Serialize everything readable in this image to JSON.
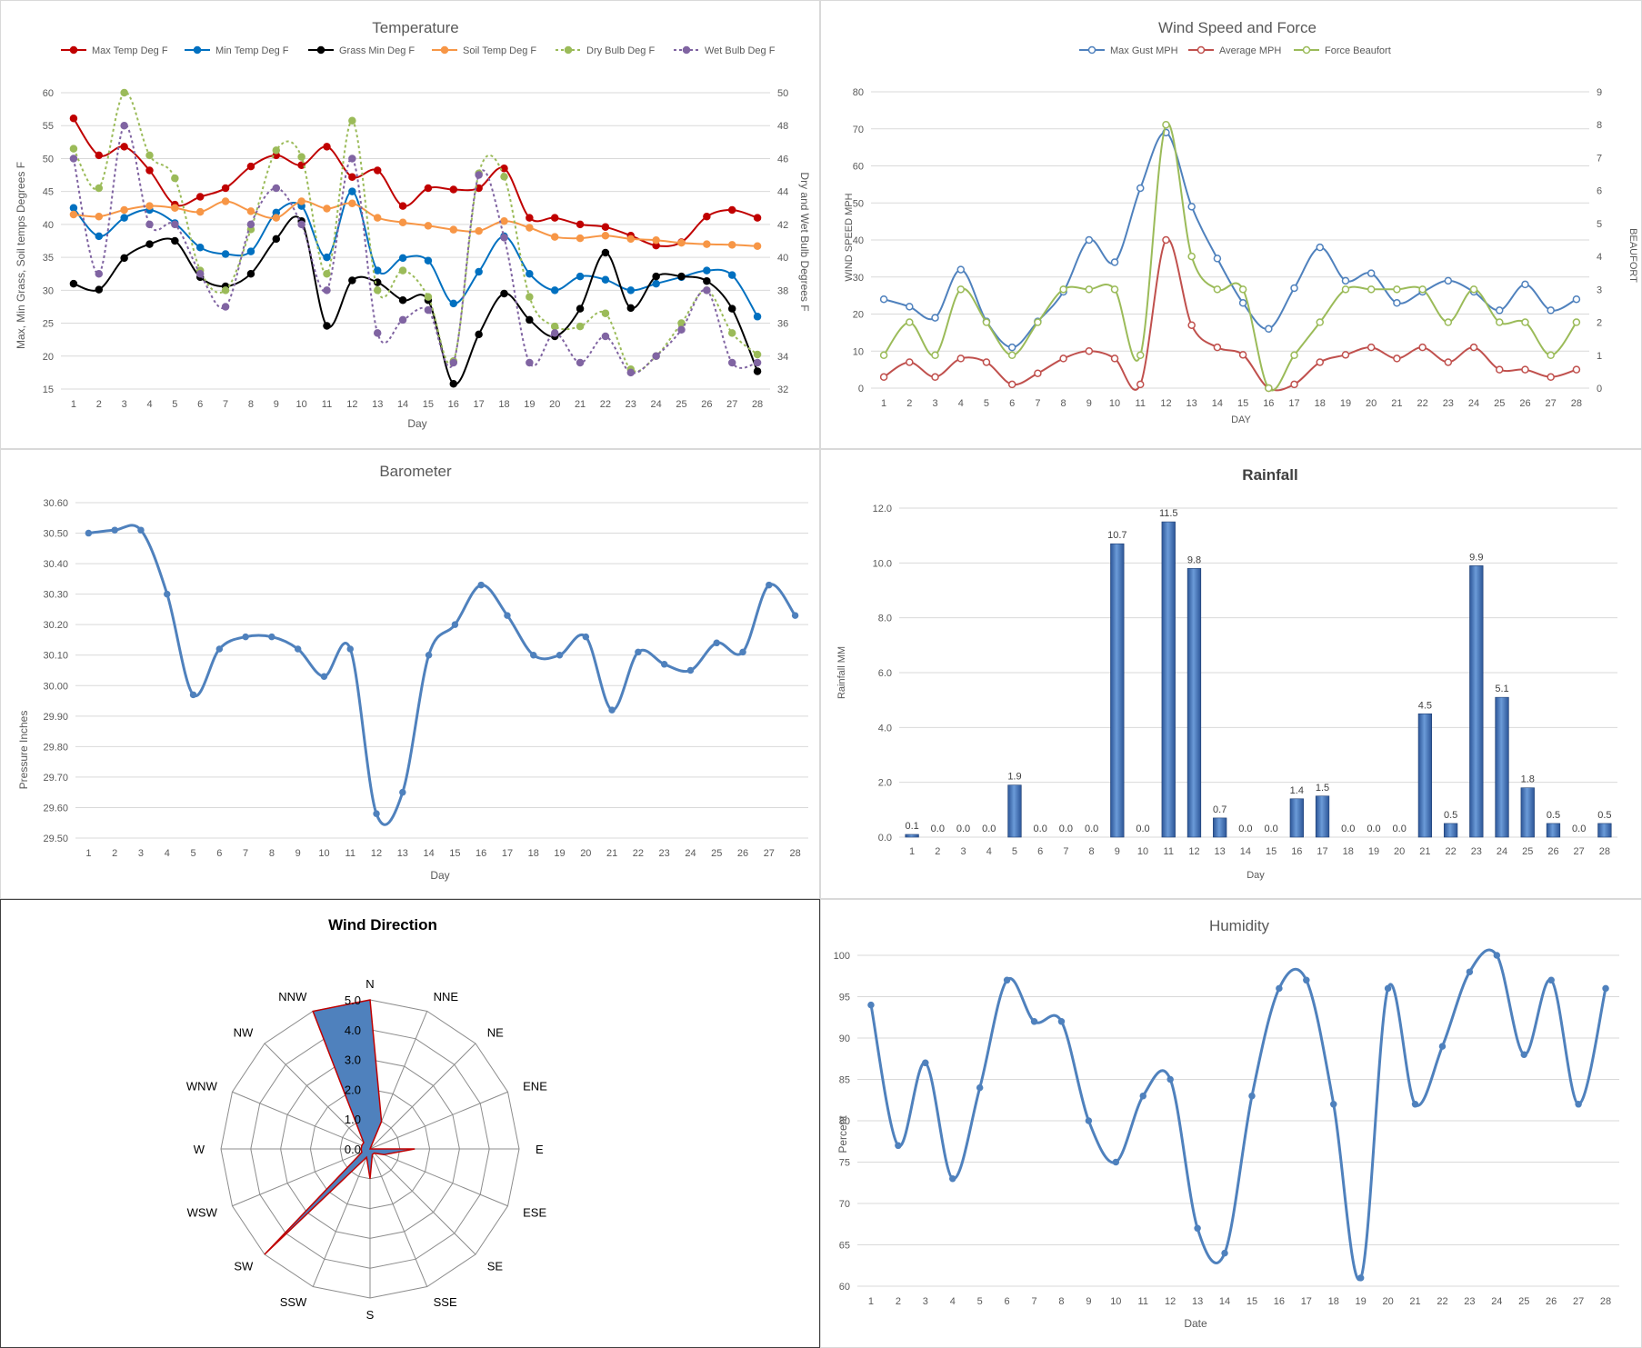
{
  "chart_data": [
    {
      "id": "temperature",
      "type": "line",
      "title": "Temperature",
      "xlabel": "Day",
      "ylabel": "Max, Min Grass, Soil temps Degrees F",
      "y2label": "Dry and Wet Bulb Degrees F",
      "ylim": [
        15,
        60
      ],
      "y2lim": [
        32,
        50
      ],
      "yticks": [
        15,
        20,
        25,
        30,
        35,
        40,
        45,
        50,
        55,
        60
      ],
      "y2ticks": [
        32,
        34,
        36,
        38,
        40,
        42,
        44,
        46,
        48,
        50
      ],
      "x": [
        1,
        2,
        3,
        4,
        5,
        6,
        7,
        8,
        9,
        10,
        11,
        12,
        13,
        14,
        15,
        16,
        17,
        18,
        19,
        20,
        21,
        22,
        23,
        24,
        25,
        26,
        27,
        28
      ],
      "legend_position": "top",
      "series": [
        {
          "name": "Max Temp Deg F",
          "axis": "left",
          "color": "#c00000",
          "dash": false,
          "values": [
            56.1,
            50.5,
            51.8,
            48.2,
            43.0,
            44.2,
            45.5,
            48.8,
            50.5,
            49.0,
            51.8,
            47.2,
            48.2,
            42.8,
            45.5,
            45.3,
            45.5,
            48.5,
            41.0,
            41.0,
            40.0,
            39.6,
            38.3,
            36.8,
            37.3,
            41.2,
            42.2,
            41.0
          ]
        },
        {
          "name": "Min Temp Deg F",
          "axis": "left",
          "color": "#0070c0",
          "dash": false,
          "values": [
            42.5,
            38.2,
            41.0,
            42.2,
            40.2,
            36.5,
            35.5,
            35.9,
            41.8,
            42.8,
            35.0,
            45.0,
            33.0,
            34.9,
            34.5,
            28.0,
            32.8,
            38.2,
            32.5,
            30.0,
            32.1,
            31.6,
            30.0,
            31.0,
            32.0,
            33.0,
            32.3,
            26.0
          ]
        },
        {
          "name": "Grass Min Deg F",
          "axis": "left",
          "color": "#000000",
          "dash": false,
          "values": [
            31.0,
            30.1,
            34.9,
            37.0,
            37.5,
            32.0,
            30.6,
            32.5,
            37.8,
            40.5,
            24.6,
            31.5,
            31.2,
            28.5,
            28.5,
            15.8,
            23.3,
            29.5,
            25.5,
            23.0,
            27.2,
            35.7,
            27.3,
            32.1,
            32.1,
            31.4,
            27.2,
            17.7
          ]
        },
        {
          "name": "Soil Temp Deg F",
          "axis": "left",
          "color": "#f79646",
          "dash": false,
          "values": [
            41.5,
            41.2,
            42.2,
            42.8,
            42.5,
            41.9,
            43.5,
            42.0,
            41.0,
            43.5,
            42.4,
            43.2,
            41.0,
            40.3,
            39.8,
            39.2,
            39.0,
            40.5,
            39.5,
            38.1,
            37.9,
            38.3,
            37.8,
            37.6,
            37.2,
            37.0,
            36.9,
            36.7
          ]
        },
        {
          "name": "Dry Bulb Deg F",
          "axis": "right",
          "color": "#9bbb59",
          "dash": true,
          "values": [
            46.6,
            44.2,
            50.0,
            46.2,
            44.8,
            39.2,
            38.0,
            41.7,
            46.5,
            46.1,
            39.0,
            48.3,
            38.0,
            39.2,
            37.6,
            33.7,
            45.1,
            44.9,
            37.6,
            35.8,
            35.8,
            36.6,
            33.2,
            34.0,
            36.0,
            38.0,
            35.4,
            34.1
          ]
        },
        {
          "name": "Wet Bulb Deg F",
          "axis": "right",
          "color": "#8064a2",
          "dash": true,
          "values": [
            46.0,
            39.0,
            48.0,
            42.0,
            42.0,
            39.0,
            37.0,
            42.0,
            44.2,
            42.0,
            38.0,
            46.0,
            35.4,
            36.2,
            36.8,
            33.6,
            45.0,
            41.2,
            33.6,
            35.4,
            33.6,
            35.2,
            33.0,
            34.0,
            35.6,
            38.0,
            33.6,
            33.6
          ]
        }
      ]
    },
    {
      "id": "wind_speed",
      "type": "line",
      "title": "Wind Speed and Force",
      "xlabel": "DAY",
      "ylabel": "WIND SPEED MPH",
      "y2label": "BEAUFORT",
      "ylim": [
        0,
        80
      ],
      "y2lim": [
        0,
        9
      ],
      "yticks": [
        0,
        10,
        20,
        30,
        40,
        50,
        60,
        70,
        80
      ],
      "y2ticks": [
        0,
        1,
        2,
        3,
        4,
        5,
        6,
        7,
        8,
        9
      ],
      "x": [
        1,
        2,
        3,
        4,
        5,
        6,
        7,
        8,
        9,
        10,
        11,
        12,
        13,
        14,
        15,
        16,
        17,
        18,
        19,
        20,
        21,
        22,
        23,
        24,
        25,
        26,
        27,
        28
      ],
      "legend_position": "top",
      "series": [
        {
          "name": "Max Gust MPH",
          "axis": "left",
          "color": "#4f81bd",
          "values": [
            24,
            22,
            19,
            32,
            18,
            11,
            18,
            26,
            40,
            34,
            54,
            69,
            49,
            35,
            23,
            16,
            27,
            38,
            29,
            31,
            23,
            26,
            29,
            26,
            21,
            28,
            21,
            24
          ]
        },
        {
          "name": "Average MPH",
          "axis": "left",
          "color": "#c0504d",
          "values": [
            3,
            7,
            3,
            8,
            7,
            1,
            4,
            8,
            10,
            8,
            1,
            40,
            17,
            11,
            9,
            0,
            1,
            7,
            9,
            11,
            8,
            11,
            7,
            11,
            5,
            5,
            3,
            5
          ]
        },
        {
          "name": "Force Beaufort",
          "axis": "right",
          "color": "#9bbb59",
          "values": [
            1,
            2,
            1,
            3,
            2,
            1,
            2,
            3,
            3,
            3,
            1,
            8,
            4,
            3,
            3,
            0,
            1,
            2,
            3,
            3,
            3,
            3,
            2,
            3,
            2,
            2,
            1,
            2
          ]
        }
      ]
    },
    {
      "id": "barometer",
      "type": "line",
      "title": "Barometer",
      "xlabel": "Day",
      "ylabel": "Pressure Inches",
      "ylim": [
        29.5,
        30.6
      ],
      "yticks": [
        "29.50",
        "29.60",
        "29.70",
        "29.80",
        "29.90",
        "30.00",
        "30.10",
        "30.20",
        "30.30",
        "30.40",
        "30.50",
        "30.60"
      ],
      "x": [
        1,
        2,
        3,
        4,
        5,
        6,
        7,
        8,
        9,
        10,
        11,
        12,
        13,
        14,
        15,
        16,
        17,
        18,
        19,
        20,
        21,
        22,
        23,
        24,
        25,
        26,
        27,
        28
      ],
      "series": [
        {
          "name": "",
          "color": "#4f81bd",
          "values": [
            30.5,
            30.51,
            30.51,
            30.3,
            29.97,
            30.12,
            30.16,
            30.16,
            30.12,
            30.03,
            30.12,
            29.58,
            29.65,
            30.1,
            30.2,
            30.33,
            30.23,
            30.1,
            30.1,
            30.16,
            29.92,
            30.11,
            30.07,
            30.05,
            30.14,
            30.11,
            30.33,
            30.23
          ]
        }
      ]
    },
    {
      "id": "rainfall",
      "type": "bar",
      "title": "Rainfall",
      "xlabel": "Day",
      "ylabel": "Rainfall MM",
      "ylim": [
        0,
        12
      ],
      "yticks": [
        "0.0",
        "2.0",
        "4.0",
        "6.0",
        "8.0",
        "10.0",
        "12.0"
      ],
      "categories": [
        "1",
        "2",
        "3",
        "4",
        "5",
        "6",
        "7",
        "8",
        "9",
        "10",
        "11",
        "12",
        "13",
        "14",
        "15",
        "16",
        "17",
        "18",
        "19",
        "20",
        "21",
        "22",
        "23",
        "24",
        "25",
        "26",
        "27",
        "28"
      ],
      "values": [
        0.1,
        0.0,
        0.0,
        0.0,
        1.9,
        0.0,
        0.0,
        0.0,
        10.7,
        0.0,
        11.5,
        9.8,
        0.7,
        0.0,
        0.0,
        1.4,
        1.5,
        0.0,
        0.0,
        0.0,
        4.5,
        0.5,
        9.9,
        5.1,
        1.8,
        0.5,
        0.0,
        0.5
      ],
      "data_labels": [
        "0.1",
        "0.0",
        "0.0",
        "0.0",
        "1.9",
        "0.0",
        "0.0",
        "0.0",
        "10.7",
        "0.0",
        "11.5",
        "9.8",
        "0.7",
        "0.0",
        "0.0",
        "1.4",
        "1.5",
        "0.0",
        "0.0",
        "0.0",
        "4.5",
        "0.5",
        "9.9",
        "5.1",
        "1.8",
        "0.5",
        "0.0",
        "0.5"
      ],
      "color": "#4f81bd"
    },
    {
      "id": "wind_direction",
      "type": "radar",
      "title": "Wind Direction",
      "categories": [
        "N",
        "NNE",
        "NE",
        "ENE",
        "E",
        "ESE",
        "SE",
        "SSE",
        "S",
        "SSW",
        "SW",
        "WSW",
        "W",
        "WNW",
        "NW",
        "NNW"
      ],
      "values": [
        5.0,
        1.0,
        0.0,
        0.0,
        1.5,
        0.5,
        0.2,
        0.2,
        1.0,
        0.3,
        5.0,
        0.3,
        0.3,
        0.3,
        0.3,
        5.0
      ],
      "rlim": [
        0,
        5
      ],
      "rticks": [
        "0.0",
        "1.0",
        "2.0",
        "3.0",
        "4.0",
        "5.0"
      ],
      "fill_color": "#4f81bd",
      "line_color": "#c00000"
    },
    {
      "id": "humidity",
      "type": "line",
      "title": "Humidity",
      "xlabel": "Date",
      "ylabel": "Percent",
      "ylim": [
        60,
        100
      ],
      "yticks": [
        60,
        65,
        70,
        75,
        80,
        85,
        90,
        95,
        100
      ],
      "x": [
        1,
        2,
        3,
        4,
        5,
        6,
        7,
        8,
        9,
        10,
        11,
        12,
        13,
        14,
        15,
        16,
        17,
        18,
        19,
        20,
        21,
        22,
        23,
        24,
        25,
        26,
        27,
        28
      ],
      "series": [
        {
          "name": "",
          "color": "#4f81bd",
          "values": [
            94,
            77,
            87,
            73,
            84,
            97,
            92,
            92,
            80,
            75,
            83,
            85,
            67,
            64,
            83,
            96,
            97,
            82,
            61,
            96,
            82,
            89,
            98,
            100,
            88,
            97,
            82,
            96
          ]
        }
      ]
    }
  ]
}
